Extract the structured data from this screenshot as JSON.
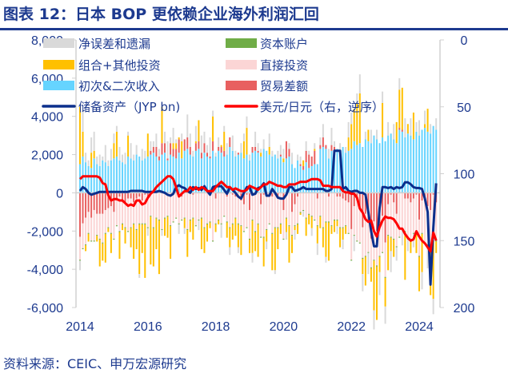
{
  "title": "图表 12：日本 BOP 更依赖企业海外利润汇回",
  "source": "资料来源：CEIC、申万宏源研究",
  "chart_data": {
    "type": "bar",
    "start_month": "2014-01",
    "x_ticks": [
      "2014",
      "2016",
      "2018",
      "2020",
      "2022",
      "2024"
    ],
    "y_left": {
      "range": [
        -6000,
        8000
      ],
      "ticks": [
        "8,000",
        "6,000",
        "4,000",
        "2,000",
        "0",
        "-2,000",
        "-4,000",
        "-6,000"
      ],
      "tick_values": [
        8000,
        6000,
        4000,
        2000,
        0,
        -2000,
        -4000,
        -6000
      ]
    },
    "y_right": {
      "range": [
        0,
        200
      ],
      "inverted": true,
      "ticks": [
        "0",
        "50",
        "100",
        "150",
        "200"
      ],
      "tick_values": [
        0,
        50,
        100,
        150,
        200
      ]
    },
    "grid": false,
    "legend_placement": "top",
    "series": [
      {
        "name": "净误差和遗漏",
        "kind": "bar",
        "color": "#d9d9d9",
        "values": [
          -500,
          1100,
          500,
          300,
          800,
          1000,
          400,
          600,
          200,
          900,
          300,
          600,
          500,
          300,
          700,
          400,
          600,
          200,
          800,
          300,
          500,
          -200,
          600,
          400,
          -400,
          500,
          300,
          700,
          400,
          -300,
          600,
          900,
          300,
          800,
          200,
          -500,
          400,
          -300,
          1200,
          700,
          300,
          800,
          -500,
          900,
          600,
          400,
          1000,
          300,
          200,
          500,
          -700,
          300,
          600,
          -400,
          800,
          300,
          -300,
          500,
          400,
          600,
          300,
          -500,
          800,
          400,
          200,
          500,
          -400,
          700,
          300,
          -200,
          400,
          500,
          500,
          -400,
          300,
          600,
          -500,
          300,
          400,
          -300,
          500,
          200,
          -400,
          300,
          -600,
          400,
          700,
          -300,
          500,
          900,
          300,
          -400,
          600,
          -500,
          300,
          800,
          600,
          -800,
          500,
          1000,
          -900,
          400,
          -1100,
          700,
          -1000,
          500,
          -1200,
          600,
          -900,
          700,
          -1100,
          800,
          -700,
          600,
          -800,
          1000,
          -600,
          900,
          -700,
          500,
          800,
          -900,
          700,
          -1200,
          500,
          -800,
          600
        ]
      },
      {
        "name": "资本账户",
        "kind": "bar",
        "color": "#70ad47",
        "values": [
          -50,
          -50,
          -50,
          -50,
          -50,
          -50,
          -50,
          -50,
          -50,
          -50,
          -50,
          -50,
          -50,
          -50,
          -50,
          -50,
          -50,
          -50,
          -50,
          -50,
          -50,
          -50,
          -50,
          -50,
          -50,
          -50,
          -50,
          -50,
          -50,
          -50,
          -50,
          -50,
          -50,
          -50,
          -50,
          -50,
          -50,
          -50,
          -50,
          -50,
          -50,
          -50,
          -50,
          -50,
          -50,
          -50,
          -50,
          -50,
          -50,
          -50,
          -50,
          -50,
          -50,
          -50,
          -50,
          -50,
          -50,
          -50,
          -50,
          -50,
          -50,
          -50,
          -50,
          -50,
          -50,
          -50,
          -50,
          -50,
          -50,
          -50,
          -50,
          -50,
          -50,
          -50,
          -50,
          -50,
          -50,
          -50,
          -50,
          -50,
          -50,
          -50,
          -50,
          -50,
          -50,
          -50,
          -50,
          -50,
          -50,
          -50,
          -50,
          -50,
          -50,
          -50,
          -50,
          -50,
          -50,
          -50,
          -50,
          -50,
          -50,
          -50,
          -50,
          -50,
          -50,
          -50,
          -50,
          -50,
          -50,
          -50,
          -50,
          -50,
          -50,
          -50,
          -50,
          -50,
          -50,
          -50,
          -50,
          -50,
          -50,
          -50,
          -50,
          -50,
          -50,
          -50,
          -50
        ]
      },
      {
        "name": "组合+其他投资",
        "kind": "bar",
        "color": "#ffc000",
        "values": [
          3000,
          1300,
          -300,
          -400,
          800,
          400,
          -300,
          -1400,
          -900,
          -1500,
          -200,
          -1000,
          800,
          1300,
          -1400,
          -300,
          -800,
          1100,
          -1000,
          -1800,
          -1000,
          -2600,
          -1500,
          -2800,
          1200,
          -2500,
          -2000,
          -1600,
          -2800,
          1900,
          -900,
          -1100,
          -1700,
          300,
          300,
          100,
          900,
          -500,
          -1400,
          -600,
          -1100,
          100,
          1100,
          -1600,
          -1300,
          -900,
          -300,
          1300,
          -400,
          -200,
          100,
          1000,
          -800,
          -1000,
          -800,
          -900,
          -1200,
          -1500,
          900,
          1400,
          -700,
          -1700,
          -1000,
          -1700,
          200,
          -1500,
          -600,
          400,
          -1900,
          -2200,
          -1100,
          -500,
          200,
          -700,
          -1900,
          -900,
          -200,
          -500,
          -100,
          300,
          -900,
          -500,
          -600,
          100,
          -900,
          -600,
          -1000,
          -1800,
          -2000,
          -400,
          -600,
          -300,
          -1000,
          -600,
          -400,
          700,
          1300,
          1700,
          2200,
          2600,
          -800,
          -1500,
          600,
          -700,
          -2600,
          -2800,
          -800,
          1800,
          -1500,
          -1800,
          -700,
          -900,
          1100,
          2000,
          2200,
          -2500,
          500,
          -600,
          1400,
          -1000,
          -1800,
          -2000,
          200,
          1200,
          -2600,
          -3000,
          -600
        ]
      },
      {
        "name": "直接投资",
        "kind": "bar",
        "color": "#fbd5d5",
        "values": [
          -1200,
          -1300,
          -1400,
          -1100,
          -1200,
          -1600,
          -1100,
          -1300,
          -1500,
          -1200,
          -1000,
          -1400,
          -1400,
          -1300,
          -1800,
          -1200,
          -1300,
          -1700,
          -1500,
          -1100,
          -1600,
          -1400,
          -1200,
          -1500,
          -1500,
          -1200,
          -1800,
          -1300,
          -1400,
          -1900,
          -1300,
          -1200,
          -1700,
          -1500,
          -1300,
          -1600,
          -1200,
          -1300,
          -1900,
          -1400,
          -1200,
          -1700,
          -1400,
          -1300,
          -1800,
          -1600,
          -1500,
          -2500,
          -1300,
          -1400,
          -1600,
          -1200,
          -1300,
          -1800,
          -1500,
          -1100,
          -1600,
          -1300,
          -1400,
          -1700,
          -1500,
          -1400,
          -2000,
          -1600,
          -1700,
          -2200,
          -1800,
          -1400,
          -1900,
          -1700,
          -1500,
          -1600,
          -1500,
          -1300,
          -1700,
          -1200,
          -1100,
          -1400,
          -1000,
          -900,
          -1300,
          -1100,
          -1200,
          -1400,
          -1400,
          -1200,
          -1800,
          -1500,
          -1300,
          -1700,
          -1400,
          -1200,
          -1600,
          -1500,
          -1300,
          -1600,
          -1600,
          -1500,
          -2100,
          -1800,
          -1600,
          -2200,
          -1700,
          -1500,
          -2000,
          -1800,
          -1700,
          -1900,
          -1800,
          -1600,
          -2200,
          -1900,
          -1700,
          -2300,
          -1900,
          -1700,
          -2100,
          -2000,
          -1800,
          -2000,
          -1900,
          -1700,
          -2300,
          -2000,
          -1800,
          -2400,
          -2000
        ]
      },
      {
        "name": "初次&二次收入",
        "kind": "bar",
        "color": "#66d4ff",
        "values": [
          1500,
          1900,
          1600,
          1400,
          1300,
          1800,
          1500,
          1400,
          1700,
          1600,
          1400,
          1700,
          1800,
          1900,
          1700,
          1600,
          1500,
          1900,
          1800,
          1700,
          2000,
          1900,
          1700,
          1800,
          1900,
          2000,
          2100,
          1900,
          1700,
          2000,
          2100,
          1700,
          2000,
          1900,
          1800,
          2100,
          1800,
          2200,
          2300,
          2000,
          1900,
          2200,
          2300,
          1800,
          2100,
          1900,
          1800,
          2200,
          1900,
          2200,
          2100,
          1900,
          2000,
          2400,
          2200,
          1900,
          2000,
          2100,
          1800,
          2000,
          1700,
          2100,
          2200,
          2100,
          1900,
          2300,
          2200,
          2000,
          1900,
          2000,
          1800,
          1900,
          1600,
          1800,
          1900,
          1500,
          1300,
          1700,
          1400,
          1200,
          1600,
          1300,
          1400,
          1500,
          1500,
          2300,
          2400,
          2300,
          1800,
          2200,
          2100,
          2300,
          2000,
          2400,
          2100,
          2200,
          2300,
          2700,
          2500,
          2600,
          2400,
          2800,
          2700,
          2600,
          3000,
          2800,
          2600,
          2900,
          2700,
          3000,
          3100,
          2800,
          2600,
          3300,
          3200,
          2900,
          3100,
          3000,
          2800,
          3200,
          3000,
          3300,
          3400,
          3200,
          3100,
          3500,
          3300
        ]
      },
      {
        "name": "贸易差额",
        "kind": "bar",
        "color": "#e86060",
        "values": [
          -2300,
          -1600,
          -1300,
          -1000,
          -1300,
          -900,
          -1100,
          -1100,
          -1100,
          -900,
          -800,
          -700,
          -1000,
          -400,
          -200,
          -400,
          -500,
          -300,
          -300,
          -500,
          -300,
          -200,
          -400,
          -100,
          -300,
          200,
          300,
          500,
          200,
          600,
          500,
          100,
          600,
          400,
          500,
          700,
          -200,
          600,
          600,
          400,
          -100,
          400,
          400,
          300,
          500,
          200,
          100,
          500,
          -300,
          200,
          300,
          300,
          -200,
          500,
          -100,
          -200,
          100,
          -400,
          -600,
          -100,
          -900,
          300,
          200,
          100,
          -600,
          -100,
          -100,
          -200,
          -200,
          -100,
          -300,
          100,
          -900,
          900,
          400,
          -1000,
          -600,
          -200,
          100,
          200,
          600,
          700,
          500,
          700,
          -300,
          200,
          500,
          200,
          -200,
          300,
          300,
          -200,
          -200,
          -300,
          -400,
          -500,
          -1900,
          -700,
          -400,
          -800,
          -1800,
          -1100,
          -1400,
          -2400,
          -1500,
          -2000,
          -1600,
          -1200,
          -2600,
          -600,
          -100,
          -500,
          -1100,
          100,
          100,
          -300,
          -300,
          -500,
          -300,
          -100,
          -1400,
          -400,
          -300,
          -700,
          -900,
          -100,
          -500
        ]
      },
      {
        "name": "储备资产（JYP bn)",
        "kind": "line",
        "axis": "left",
        "color": "#0b2f8c",
        "values": [
          100,
          300,
          200,
          0,
          -100,
          -50,
          0,
          50,
          50,
          50,
          50,
          50,
          50,
          50,
          50,
          50,
          50,
          50,
          100,
          100,
          100,
          100,
          100,
          50,
          50,
          50,
          50,
          50,
          100,
          50,
          0,
          -100,
          -150,
          -50,
          300,
          400,
          300,
          250,
          100,
          0,
          300,
          200,
          250,
          150,
          350,
          100,
          -100,
          300,
          350,
          350,
          350,
          150,
          -50,
          300,
          150,
          0,
          -200,
          -300,
          0,
          300,
          300,
          -100,
          -50,
          250,
          300,
          500,
          -150,
          -150,
          200,
          0,
          -250,
          -300,
          -300,
          -100,
          300,
          300,
          100,
          150,
          200,
          300,
          200,
          200,
          200,
          200,
          200,
          200,
          200,
          100,
          100,
          200,
          2200,
          2200,
          2200,
          200,
          300,
          100,
          50,
          100,
          100,
          0,
          0,
          -100,
          -1000,
          -2000,
          -2800,
          -2800,
          -800,
          300,
          300,
          250,
          300,
          200,
          300,
          250,
          300,
          550,
          550,
          450,
          300,
          250,
          250,
          200,
          -300,
          -1000,
          -4800,
          -1800,
          500
        ]
      },
      {
        "name": "美元/日元（右，逆序）",
        "kind": "line",
        "axis": "right",
        "color": "#ff0000",
        "values": [
          104,
          102,
          102,
          102,
          102,
          102,
          102,
          103,
          107,
          108,
          116,
          120,
          119,
          119,
          120,
          120,
          122,
          124,
          123,
          124,
          120,
          120,
          123,
          122,
          118,
          115,
          113,
          110,
          108,
          106,
          104,
          102,
          102,
          104,
          110,
          117,
          115,
          113,
          113,
          110,
          112,
          110,
          112,
          110,
          111,
          113,
          113,
          113,
          110,
          108,
          106,
          108,
          110,
          110,
          112,
          111,
          112,
          113,
          113,
          112,
          109,
          110,
          111,
          112,
          110,
          108,
          108,
          106,
          107,
          108,
          109,
          109,
          110,
          110,
          108,
          108,
          108,
          107,
          106,
          106,
          106,
          105,
          104,
          104,
          104,
          105,
          109,
          109,
          109,
          110,
          110,
          110,
          110,
          113,
          114,
          114,
          115,
          115,
          118,
          126,
          129,
          134,
          136,
          135,
          143,
          147,
          140,
          135,
          132,
          133,
          133,
          134,
          137,
          141,
          141,
          145,
          148,
          150,
          149,
          143,
          147,
          150,
          152,
          155,
          158,
          144,
          150
        ]
      }
    ]
  }
}
